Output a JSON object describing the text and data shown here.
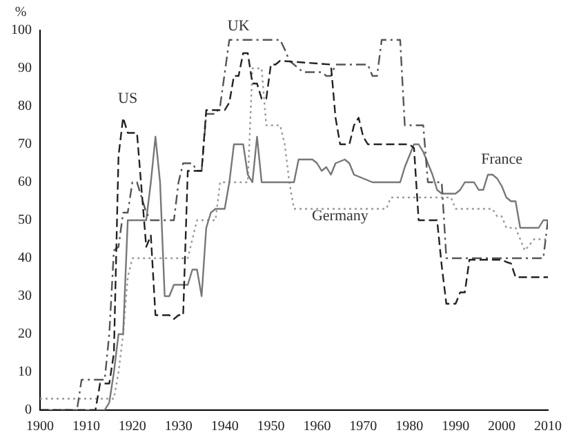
{
  "chart_data": {
    "type": "line",
    "ylabel": "%",
    "xlim": [
      1900,
      2010
    ],
    "ylim": [
      0,
      100
    ],
    "xticks": [
      1900,
      1910,
      1920,
      1930,
      1940,
      1950,
      1960,
      1970,
      1980,
      1990,
      2000,
      2010
    ],
    "yticks": [
      0,
      10,
      20,
      30,
      40,
      50,
      60,
      70,
      80,
      90,
      100
    ],
    "grid": false,
    "legend": false,
    "marker": "none",
    "series": [
      {
        "name": "US",
        "color": "#222222",
        "line_style": "dashed",
        "x": [
          1900,
          1912,
          1913,
          1915,
          1916,
          1917,
          1918,
          1919,
          1921,
          1922,
          1923,
          1924,
          1925,
          1928,
          1929,
          1930,
          1931,
          1932,
          1935,
          1936,
          1940,
          1941,
          1942,
          1943,
          1944,
          1945,
          1946,
          1947,
          1948,
          1949,
          1950,
          1951,
          1952,
          1963,
          1964,
          1965,
          1967,
          1968,
          1969,
          1970,
          1971,
          1980,
          1981,
          1982,
          1986,
          1987,
          1988,
          1990,
          1991,
          1992,
          1993,
          2000,
          2001,
          2002,
          2003,
          2010
        ],
        "values": [
          0,
          0,
          7,
          7,
          15,
          67,
          77,
          73,
          73,
          58,
          43,
          46,
          25,
          25,
          24,
          25,
          25,
          63,
          63,
          79,
          79,
          81,
          88,
          88,
          94,
          94,
          86,
          86,
          82,
          82,
          91,
          91,
          92,
          91,
          77,
          70,
          70,
          75,
          77,
          72,
          70,
          70,
          69,
          50,
          50,
          38,
          28,
          28,
          31,
          31,
          39.6,
          39.6,
          39,
          38.6,
          35,
          35
        ]
      },
      {
        "name": "UK",
        "color": "#555555",
        "line_style": "dashdot",
        "x": [
          1900,
          1908,
          1909,
          1914,
          1915,
          1916,
          1917,
          1918,
          1919,
          1920,
          1921,
          1922,
          1923,
          1924,
          1929,
          1930,
          1931,
          1933,
          1934,
          1935,
          1936,
          1938,
          1939,
          1941,
          1952,
          1953,
          1954,
          1956,
          1957,
          1961,
          1962,
          1963,
          1964,
          1971,
          1972,
          1973,
          1974,
          1978,
          1979,
          1983,
          1984,
          1987,
          1988,
          2009,
          2010
        ],
        "values": [
          0,
          0,
          8,
          8,
          20,
          42,
          43,
          52,
          52,
          60,
          60,
          56,
          52,
          50,
          50,
          60,
          65,
          65,
          63,
          63,
          78,
          78,
          80,
          97.5,
          97.5,
          95,
          92,
          90,
          89,
          89,
          88,
          88,
          91,
          91,
          88,
          88,
          97.5,
          97.5,
          75,
          75,
          60,
          60,
          40,
          40,
          50
        ]
      },
      {
        "name": "France",
        "color": "#777777",
        "line_style": "solid",
        "x": [
          1900,
          1914,
          1915,
          1916,
          1917,
          1918,
          1919,
          1923,
          1924,
          1925,
          1926,
          1927,
          1928,
          1929,
          1932,
          1933,
          1934,
          1935,
          1936,
          1937,
          1938,
          1940,
          1941,
          1942,
          1944,
          1945,
          1946,
          1947,
          1948,
          1955,
          1956,
          1959,
          1960,
          1961,
          1962,
          1963,
          1964,
          1966,
          1967,
          1968,
          1972,
          1978,
          1979,
          1980,
          1981,
          1982,
          1983,
          1984,
          1985,
          1986,
          1987,
          1990,
          1991,
          1992,
          1994,
          1995,
          1996,
          1997,
          1998,
          1999,
          2000,
          2001,
          2002,
          2003,
          2004,
          2008,
          2009,
          2010
        ],
        "values": [
          0,
          0,
          2,
          10,
          20,
          20,
          50,
          50,
          60,
          72,
          60,
          30,
          30,
          33,
          33,
          37,
          37,
          30,
          48,
          52,
          53,
          53,
          60,
          70,
          70,
          62,
          60,
          72,
          60,
          60,
          66,
          66,
          65,
          63,
          64,
          62,
          65,
          66,
          65,
          62,
          60,
          60,
          64,
          67,
          70,
          70,
          68,
          65,
          62,
          58,
          57,
          57,
          58,
          60,
          60,
          58,
          58,
          62,
          62,
          61,
          59,
          56,
          55,
          55,
          48,
          48,
          50,
          50
        ]
      },
      {
        "name": "Germany",
        "color": "#999999",
        "line_style": "dotted",
        "x": [
          1900,
          1916,
          1917,
          1918,
          1919,
          1920,
          1932,
          1933,
          1934,
          1938,
          1939,
          1945,
          1946,
          1948,
          1949,
          1952,
          1953,
          1954,
          1955,
          1975,
          1976,
          1989,
          1990,
          1998,
          1999,
          2000,
          2001,
          2003,
          2004,
          2005,
          2007,
          2010
        ],
        "values": [
          3,
          3,
          10,
          20,
          35,
          40,
          40,
          45,
          50,
          50,
          60,
          60,
          90,
          90,
          75,
          75,
          70,
          60,
          53,
          53,
          56,
          56,
          53,
          53,
          51,
          51,
          48,
          48,
          45,
          42,
          45,
          45
        ]
      }
    ]
  }
}
